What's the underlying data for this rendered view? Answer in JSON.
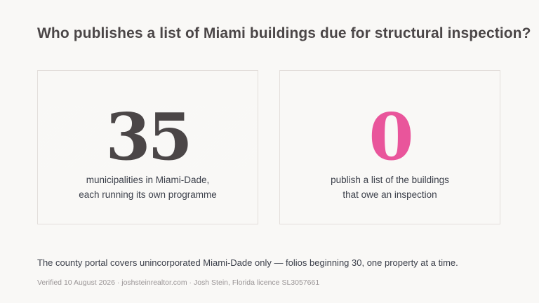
{
  "title": "Who publishes a list of Miami buildings due for structural inspection?",
  "stats": [
    {
      "value": "35",
      "caption_line1": "municipalities in Miami-Dade,",
      "caption_line2": "each running its own programme",
      "color": "#4b4647"
    },
    {
      "value": "0",
      "caption_line1": "publish a list of the buildings",
      "caption_line2": "that owe an inspection",
      "color": "#e9559b"
    }
  ],
  "note": "The county portal covers unincorporated Miami-Dade only — folios beginning 30, one property at a time.",
  "footer": "Verified 10 August 2026 · joshsteinrealtor.com · Josh Stein, Florida licence SL3057661"
}
